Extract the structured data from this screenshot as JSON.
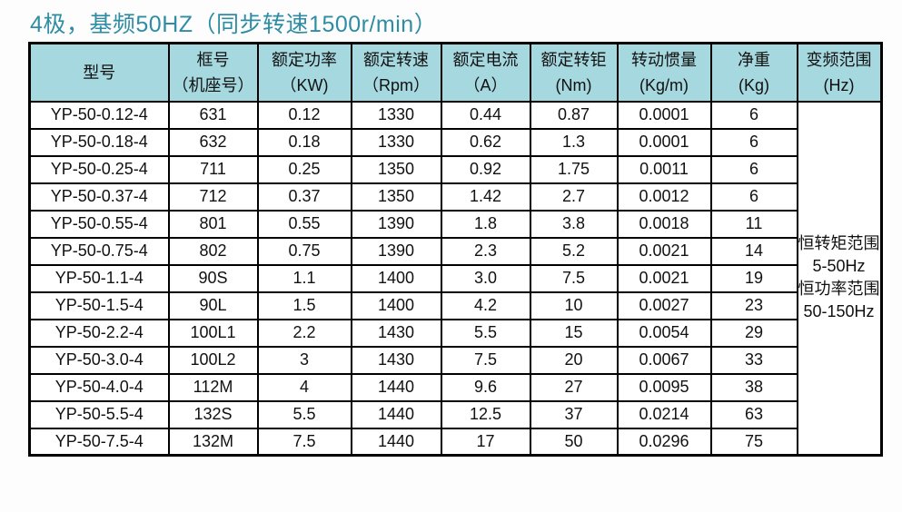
{
  "title": "4极，基频50HZ（同步转速1500r/min）",
  "colors": {
    "title_text": "#2e8da4",
    "header_bg": "#a6d8e0",
    "border": "#000000"
  },
  "table": {
    "headers": [
      {
        "line1": "型号",
        "line2": ""
      },
      {
        "line1": "框号",
        "line2": "（机座号）"
      },
      {
        "line1": "额定功率",
        "line2": "（KW)"
      },
      {
        "line1": "额定转速",
        "line2": "（Rpm）"
      },
      {
        "line1": "额定电流",
        "line2": "（A）"
      },
      {
        "line1": "额定转钜",
        "line2": "(Nm)"
      },
      {
        "line1": "转动惯量",
        "line2": "(Kg/m)"
      },
      {
        "line1": "净重",
        "line2": "(Kg)"
      },
      {
        "line1": "变频范围",
        "line2": "(Hz)"
      }
    ],
    "rows": [
      [
        "YP-50-0.12-4",
        "631",
        "0.12",
        "1330",
        "0.44",
        "0.87",
        "0.0001",
        "6"
      ],
      [
        "YP-50-0.18-4",
        "632",
        "0.18",
        "1330",
        "0.62",
        "1.3",
        "0.0001",
        "6"
      ],
      [
        "YP-50-0.25-4",
        "711",
        "0.25",
        "1350",
        "0.92",
        "1.75",
        "0.0011",
        "6"
      ],
      [
        "YP-50-0.37-4",
        "712",
        "0.37",
        "1350",
        "1.42",
        "2.7",
        "0.0012",
        "6"
      ],
      [
        "YP-50-0.55-4",
        "801",
        "0.55",
        "1390",
        "1.8",
        "3.8",
        "0.0018",
        "11"
      ],
      [
        "YP-50-0.75-4",
        "802",
        "0.75",
        "1390",
        "2.3",
        "5.2",
        "0.0021",
        "14"
      ],
      [
        "YP-50-1.1-4",
        "90S",
        "1.1",
        "1400",
        "3.0",
        "7.5",
        "0.0021",
        "19"
      ],
      [
        "YP-50-1.5-4",
        "90L",
        "1.5",
        "1400",
        "4.2",
        "10",
        "0.0027",
        "23"
      ],
      [
        "YP-50-2.2-4",
        "100L1",
        "2.2",
        "1430",
        "5.5",
        "15",
        "0.0054",
        "29"
      ],
      [
        "YP-50-3.0-4",
        "100L2",
        "3",
        "1430",
        "7.5",
        "20",
        "0.0067",
        "33"
      ],
      [
        "YP-50-4.0-4",
        "112M",
        "4",
        "1440",
        "9.6",
        "27",
        "0.0095",
        "38"
      ],
      [
        "YP-50-5.5-4",
        "132S",
        "5.5",
        "1440",
        "12.5",
        "37",
        "0.0214",
        "63"
      ],
      [
        "YP-50-7.5-4",
        "132M",
        "7.5",
        "1440",
        "17",
        "50",
        "0.0296",
        "75"
      ]
    ],
    "range_cell": {
      "lines": [
        "恒转矩范围",
        "5-50Hz",
        "恒功率范围",
        "50-150Hz"
      ]
    }
  }
}
